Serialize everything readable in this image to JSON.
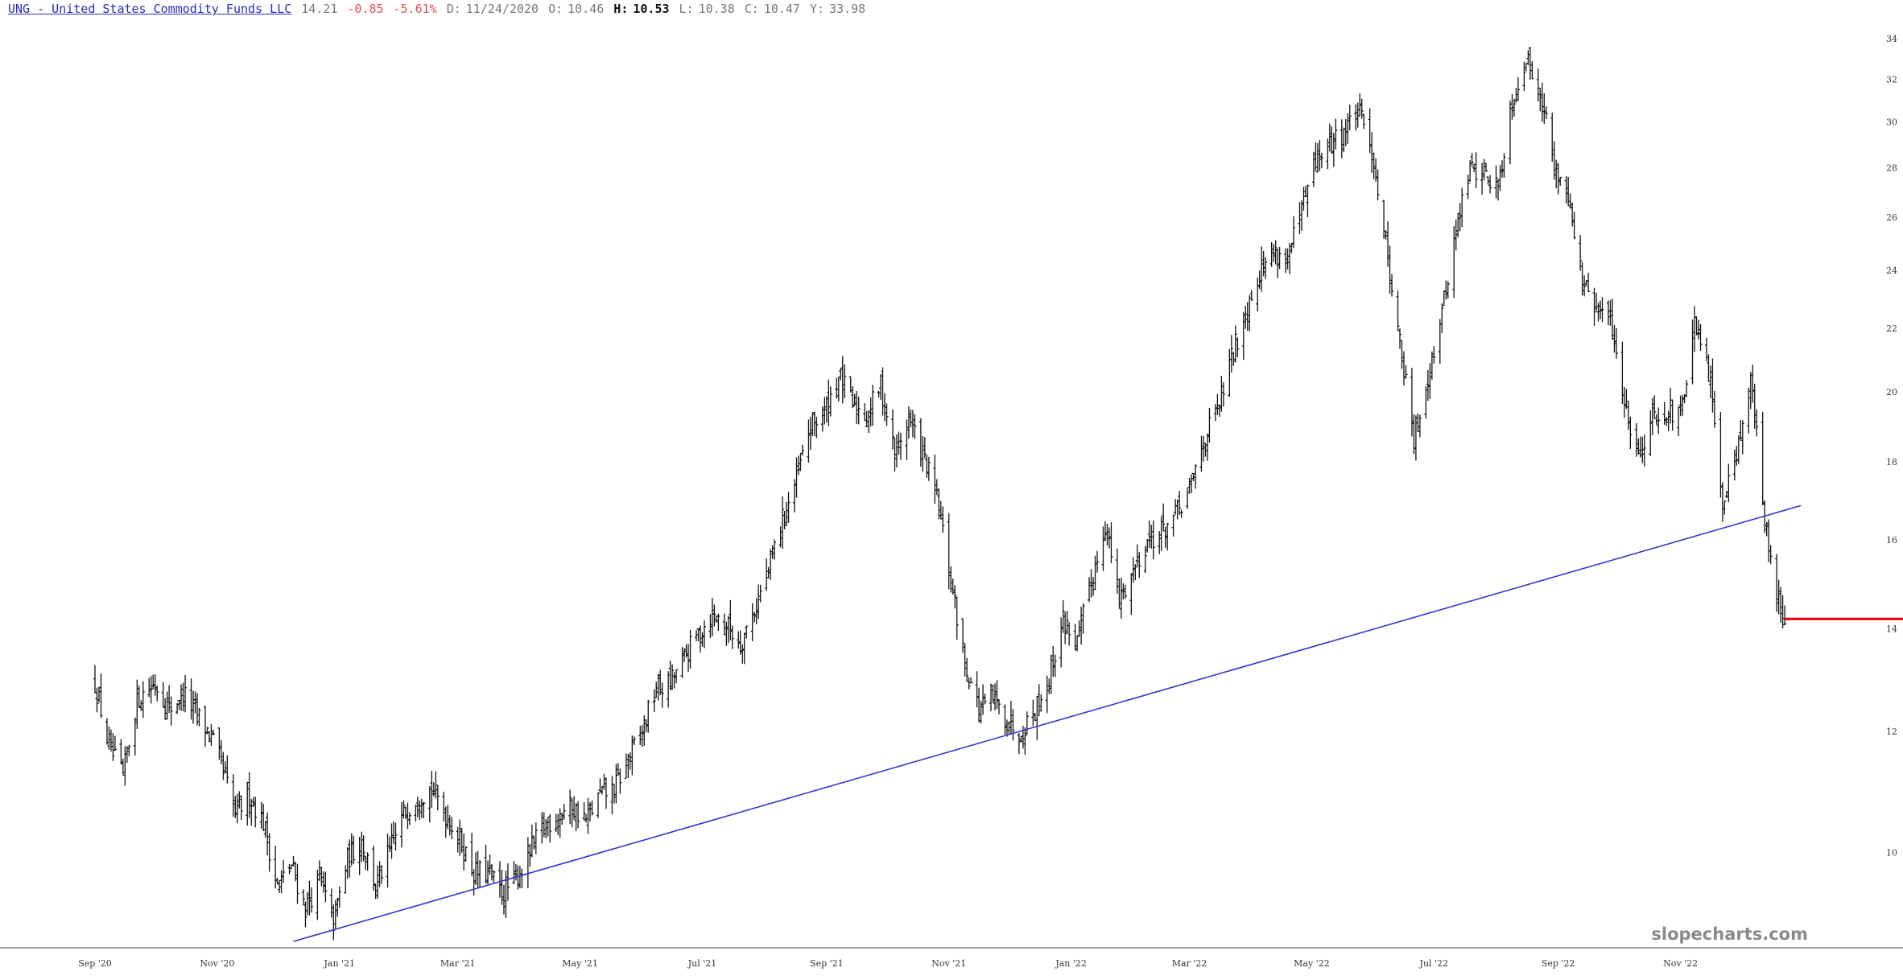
{
  "header": {
    "ticker": "UNG - United States Commodity Funds LLC",
    "last": "14.21",
    "change": "-0.85",
    "change_pct": "-5.61%",
    "date_label": "D:",
    "date": "11/24/2020",
    "open_label": "O:",
    "open": "10.46",
    "high_label": "H:",
    "high": "10.53",
    "low_label": "L:",
    "low": "10.38",
    "close_label": "C:",
    "close": "10.47",
    "y_label": "Y:",
    "y": "33.98"
  },
  "watermark": "slopecharts.com",
  "colors": {
    "bars": "#111111",
    "trendline": "#3535c8",
    "last_price_line": "#e00000",
    "axis": "#444444"
  },
  "chart_data": {
    "type": "ohlc-bar",
    "scale": "log",
    "ylim": [
      8.75,
      34.8
    ],
    "y_ticks": [
      10,
      12,
      14,
      16,
      18,
      20,
      22,
      24,
      26,
      28,
      30,
      32,
      34
    ],
    "x_range": [
      "2020-09-01",
      "2022-12-31"
    ],
    "x_ticks": [
      {
        "date": "2020-09-01",
        "label": "Sep '20"
      },
      {
        "date": "2020-11-01",
        "label": "Nov '20"
      },
      {
        "date": "2021-01-01",
        "label": "Jan '21"
      },
      {
        "date": "2021-03-01",
        "label": "Mar '21"
      },
      {
        "date": "2021-05-01",
        "label": "May '21"
      },
      {
        "date": "2021-07-01",
        "label": "Jul '21"
      },
      {
        "date": "2021-09-01",
        "label": "Sep '21"
      },
      {
        "date": "2021-11-01",
        "label": "Nov '21"
      },
      {
        "date": "2022-01-01",
        "label": "Jan '22"
      },
      {
        "date": "2022-03-01",
        "label": "Mar '22"
      },
      {
        "date": "2022-05-01",
        "label": "May '22"
      },
      {
        "date": "2022-07-01",
        "label": "Jul '22"
      },
      {
        "date": "2022-09-01",
        "label": "Sep '22"
      },
      {
        "date": "2022-11-01",
        "label": "Nov '22"
      }
    ],
    "price_path": [
      [
        "2020-09-01",
        12.9
      ],
      [
        "2020-09-08",
        11.7
      ],
      [
        "2020-09-15",
        11.2
      ],
      [
        "2020-09-22",
        12.6
      ],
      [
        "2020-10-01",
        12.9
      ],
      [
        "2020-10-08",
        12.4
      ],
      [
        "2020-10-15",
        12.7
      ],
      [
        "2020-10-22",
        12.3
      ],
      [
        "2020-10-29",
        11.9
      ],
      [
        "2020-11-03",
        11.4
      ],
      [
        "2020-11-10",
        10.6
      ],
      [
        "2020-11-17",
        10.9
      ],
      [
        "2020-11-24",
        10.47
      ],
      [
        "2020-12-01",
        9.5
      ],
      [
        "2020-12-08",
        9.8
      ],
      [
        "2020-12-15",
        9.2
      ],
      [
        "2020-12-22",
        9.6
      ],
      [
        "2020-12-29",
        9.0
      ],
      [
        "2021-01-05",
        9.9
      ],
      [
        "2021-01-12",
        10.2
      ],
      [
        "2021-01-19",
        9.5
      ],
      [
        "2021-01-26",
        10.0
      ],
      [
        "2021-02-02",
        10.6
      ],
      [
        "2021-02-09",
        10.9
      ],
      [
        "2021-02-16",
        11.0
      ],
      [
        "2021-02-23",
        10.6
      ],
      [
        "2021-03-02",
        10.2
      ],
      [
        "2021-03-09",
        9.7
      ],
      [
        "2021-03-16",
        9.7
      ],
      [
        "2021-03-23",
        9.4
      ],
      [
        "2021-03-30",
        9.6
      ],
      [
        "2021-04-06",
        10.0
      ],
      [
        "2021-04-13",
        10.4
      ],
      [
        "2021-04-20",
        10.6
      ],
      [
        "2021-04-27",
        10.7
      ],
      [
        "2021-05-04",
        10.5
      ],
      [
        "2021-05-11",
        10.9
      ],
      [
        "2021-05-18",
        11.0
      ],
      [
        "2021-05-25",
        11.5
      ],
      [
        "2021-06-01",
        12.0
      ],
      [
        "2021-06-08",
        12.8
      ],
      [
        "2021-06-15",
        12.9
      ],
      [
        "2021-06-22",
        13.4
      ],
      [
        "2021-06-29",
        13.9
      ],
      [
        "2021-07-06",
        14.3
      ],
      [
        "2021-07-13",
        14.1
      ],
      [
        "2021-07-20",
        13.7
      ],
      [
        "2021-07-27",
        14.4
      ],
      [
        "2021-08-03",
        15.3
      ],
      [
        "2021-08-10",
        16.5
      ],
      [
        "2021-08-17",
        17.5
      ],
      [
        "2021-08-24",
        19.0
      ],
      [
        "2021-08-31",
        19.4
      ],
      [
        "2021-09-07",
        20.5
      ],
      [
        "2021-09-14",
        19.6
      ],
      [
        "2021-09-21",
        19.3
      ],
      [
        "2021-09-28",
        20.2
      ],
      [
        "2021-10-05",
        18.2
      ],
      [
        "2021-10-12",
        19.2
      ],
      [
        "2021-10-19",
        18.2
      ],
      [
        "2021-10-26",
        17.0
      ],
      [
        "2021-11-02",
        15.0
      ],
      [
        "2021-11-09",
        13.3
      ],
      [
        "2021-11-16",
        12.4
      ],
      [
        "2021-11-23",
        12.6
      ],
      [
        "2021-11-30",
        12.2
      ],
      [
        "2021-12-07",
        12.0
      ],
      [
        "2021-12-14",
        12.4
      ],
      [
        "2021-12-21",
        13.0
      ],
      [
        "2021-12-28",
        14.2
      ],
      [
        "2022-01-04",
        13.7
      ],
      [
        "2022-01-11",
        15.0
      ],
      [
        "2022-01-18",
        16.4
      ],
      [
        "2022-01-25",
        14.6
      ],
      [
        "2022-02-01",
        15.3
      ],
      [
        "2022-02-08",
        16.0
      ],
      [
        "2022-02-15",
        16.2
      ],
      [
        "2022-02-22",
        16.6
      ],
      [
        "2022-03-01",
        17.2
      ],
      [
        "2022-03-08",
        18.6
      ],
      [
        "2022-03-15",
        19.4
      ],
      [
        "2022-03-22",
        21.0
      ],
      [
        "2022-03-29",
        22.6
      ],
      [
        "2022-04-05",
        24.0
      ],
      [
        "2022-04-12",
        24.7
      ],
      [
        "2022-04-19",
        24.4
      ],
      [
        "2022-04-26",
        26.2
      ],
      [
        "2022-05-03",
        28.3
      ],
      [
        "2022-05-10",
        29.0
      ],
      [
        "2022-05-17",
        29.6
      ],
      [
        "2022-05-24",
        30.5
      ],
      [
        "2022-05-31",
        28.8
      ],
      [
        "2022-06-07",
        25.0
      ],
      [
        "2022-06-14",
        21.5
      ],
      [
        "2022-06-21",
        18.5
      ],
      [
        "2022-06-28",
        20.5
      ],
      [
        "2022-07-05",
        22.5
      ],
      [
        "2022-07-12",
        25.5
      ],
      [
        "2022-07-19",
        28.0
      ],
      [
        "2022-07-26",
        27.8
      ],
      [
        "2022-08-02",
        27.2
      ],
      [
        "2022-08-09",
        31.0
      ],
      [
        "2022-08-16",
        33.0
      ],
      [
        "2022-08-23",
        31.5
      ],
      [
        "2022-08-30",
        28.0
      ],
      [
        "2022-09-06",
        27.0
      ],
      [
        "2022-09-13",
        23.5
      ],
      [
        "2022-09-20",
        22.6
      ],
      [
        "2022-09-27",
        22.3
      ],
      [
        "2022-10-04",
        19.7
      ],
      [
        "2022-10-11",
        18.2
      ],
      [
        "2022-10-18",
        19.3
      ],
      [
        "2022-10-25",
        19.5
      ],
      [
        "2022-11-01",
        19.2
      ],
      [
        "2022-11-08",
        22.0
      ],
      [
        "2022-11-15",
        20.6
      ],
      [
        "2022-11-22",
        17.0
      ],
      [
        "2022-11-29",
        18.3
      ],
      [
        "2022-12-06",
        20.4
      ],
      [
        "2022-12-13",
        16.4
      ],
      [
        "2022-12-20",
        14.6
      ],
      [
        "2022-12-23",
        14.21
      ]
    ],
    "trendline": {
      "start": [
        "2020-12-09",
        8.75
      ],
      "end": [
        "2022-12-31",
        16.85
      ]
    },
    "last_price": 14.21,
    "last_price_from": "2022-12-23"
  }
}
